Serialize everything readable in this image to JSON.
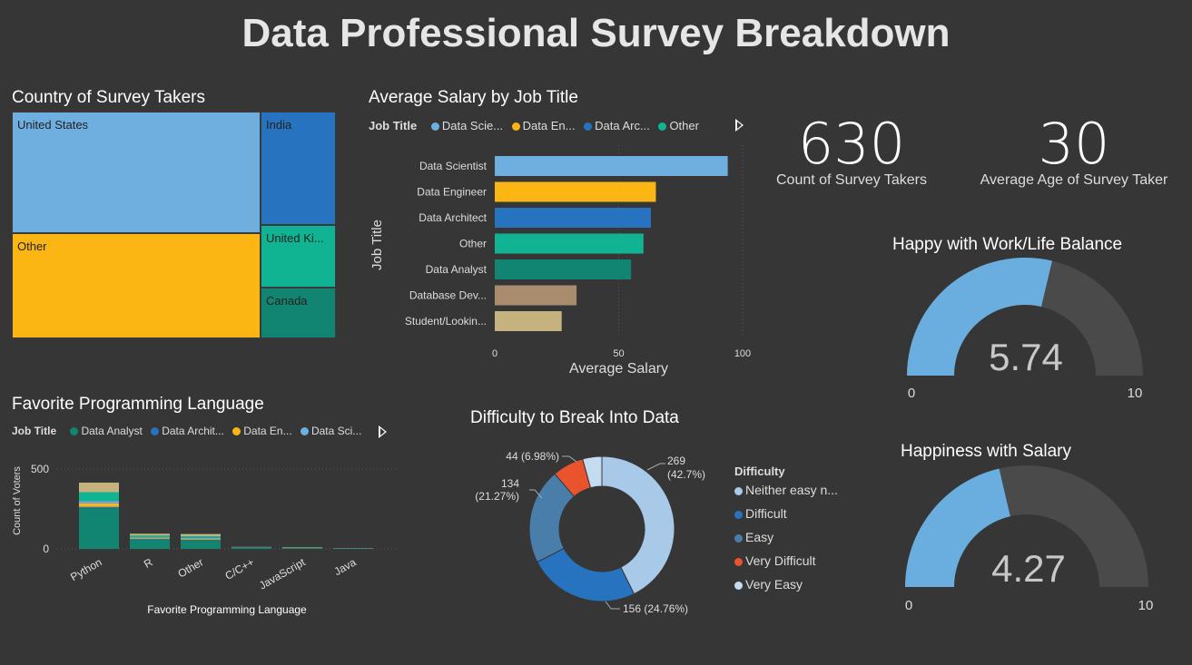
{
  "page": {
    "title": "Data Professional Survey Breakdown"
  },
  "colors": {
    "c1": "#6fafe0",
    "c2": "#fbb614",
    "c3": "#2873bf",
    "c4": "#10b492",
    "c5": "#118571",
    "c6": "#a98c6e",
    "c7": "#c6b27f",
    "vd": "#e9532e",
    "ve": "#c5dbef"
  },
  "country_chart": {
    "title": "Country of Survey Takers",
    "chart_data": {
      "type": "treemap",
      "title": "Country of Survey Takers",
      "tiles": [
        {
          "label": "United States",
          "color": "#6fafe0"
        },
        {
          "label": "Other",
          "color": "#fbb614"
        },
        {
          "label": "India",
          "color": "#2873bf"
        },
        {
          "label": "United Ki...",
          "color": "#10b492"
        },
        {
          "label": "Canada",
          "color": "#118571"
        }
      ]
    }
  },
  "salary_chart": {
    "title": "Average Salary by Job Title",
    "legend_title": "Job Title",
    "legend": [
      "Data Scie...",
      "Data En...",
      "Data Arc...",
      "Other"
    ],
    "chart_data": {
      "type": "bar",
      "orientation": "horizontal",
      "title": "Average Salary by Job Title",
      "xlabel": "Average Salary",
      "ylabel": "Job Title",
      "xlim": [
        0,
        100
      ],
      "xticks": [
        "0",
        "50",
        "100"
      ],
      "categories": [
        "Data Scientist",
        "Data Engineer",
        "Data Architect",
        "Other",
        "Data Analyst",
        "Database Dev...",
        "Student/Lookin..."
      ],
      "values": [
        94,
        65,
        63,
        60,
        55,
        33,
        27
      ],
      "colors": [
        "#6fafe0",
        "#fbb614",
        "#2873bf",
        "#10b492",
        "#118571",
        "#a98c6e",
        "#c6b27f"
      ]
    }
  },
  "kpis": [
    {
      "value": "630",
      "label": "Count of Survey Takers"
    },
    {
      "value": "30",
      "label": "Average Age  of Survey Taker"
    }
  ],
  "gauges": [
    {
      "title": "Happy with Work/Life Balance",
      "value": 5.74,
      "value_text": "5.74",
      "min": "0",
      "max": "10"
    },
    {
      "title": "Happiness with Salary",
      "value": 4.27,
      "value_text": "4.27",
      "min": "0",
      "max": "10"
    }
  ],
  "language_chart": {
    "title": "Favorite Programming Language",
    "legend_title": "Job Title",
    "legend": [
      "Data Analyst",
      "Data Archit...",
      "Data En...",
      "Data Sci..."
    ],
    "chart_data": {
      "type": "bar",
      "stacked": true,
      "title": "Favorite Programming Language",
      "xlabel": "Favorite Programming Language",
      "ylabel": "Count of Voters",
      "ylim": [
        0,
        500
      ],
      "yticks": [
        "0",
        "500"
      ],
      "categories": [
        "Python",
        "R",
        "Other",
        "C/C++",
        "JavaScript",
        "Java"
      ],
      "series": [
        {
          "name": "Data Analyst",
          "color": "#118571",
          "values": [
            255,
            60,
            55,
            8,
            4,
            2
          ]
        },
        {
          "name": "Data Archit...",
          "color": "#2873bf",
          "values": [
            8,
            2,
            3,
            1,
            1,
            0
          ]
        },
        {
          "name": "Data En...",
          "color": "#fbb614",
          "values": [
            22,
            5,
            5,
            1,
            1,
            0
          ]
        },
        {
          "name": "Data Sci...",
          "color": "#6fafe0",
          "values": [
            15,
            6,
            6,
            1,
            1,
            1
          ]
        },
        {
          "name": "",
          "color": "#10b492",
          "values": [
            55,
            10,
            10,
            1,
            2,
            1
          ]
        },
        {
          "name": "",
          "color": "#c6b27f",
          "values": [
            60,
            12,
            14,
            1,
            2,
            1
          ]
        }
      ]
    }
  },
  "difficulty_chart": {
    "title": "Difficulty to Break Into Data",
    "legend_title": "Difficulty",
    "legend": [
      "Neither easy n...",
      "Difficult",
      "Easy",
      "Very Difficult",
      "Very Easy"
    ],
    "chart_data": {
      "type": "pie",
      "donut": true,
      "title": "Difficulty to Break Into Data",
      "labels": [
        "Neither easy n...",
        "Difficult",
        "Easy",
        "Very Difficult",
        "Very Easy"
      ],
      "values": [
        269,
        156,
        134,
        44,
        27
      ],
      "colors": [
        "#a9c9e8",
        "#2873bf",
        "#4a7eaa",
        "#e9532e",
        "#c5dbef"
      ],
      "data_labels": [
        {
          "line1": "269",
          "line2": "(42.7%)"
        },
        {
          "line1": "156 (24.76%)",
          "line2": ""
        },
        {
          "line1": "134",
          "line2": "(21.27%)"
        },
        {
          "line1": "44 (6.98%)",
          "line2": ""
        }
      ]
    }
  }
}
